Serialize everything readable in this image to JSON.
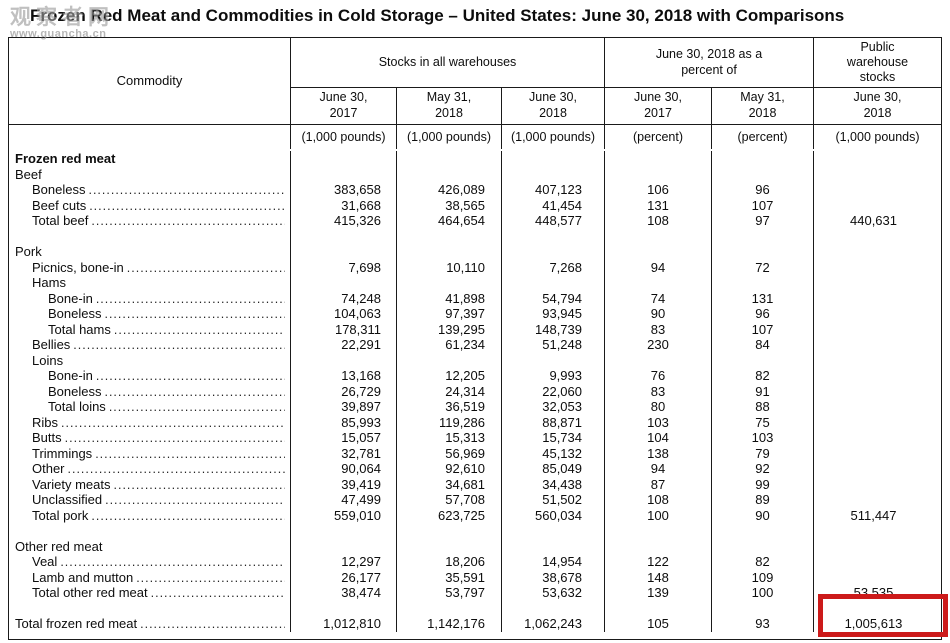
{
  "title": "Frozen Red Meat and Commodities in Cold Storage – United States: June 30, 2018 with Comparisons",
  "watermark": {
    "line1": "观察者网",
    "line2": "www.guancha.cn"
  },
  "colors": {
    "highlight_box": "#cc1a1a",
    "table_line": "#1a1a1a",
    "watermark": "#9b9b9b"
  },
  "header": {
    "commodity": "Commodity",
    "groups": {
      "stocks": "Stocks in all warehouses",
      "percent": "June 30, 2018 as a percent of",
      "public": "Public warehouse stocks"
    },
    "columns": [
      {
        "date": "June 30, 2017",
        "unit": "(1,000 pounds)"
      },
      {
        "date": "May 31, 2018",
        "unit": "(1,000 pounds)"
      },
      {
        "date": "June 30, 2018",
        "unit": "(1,000 pounds)"
      },
      {
        "date": "June 30, 2017",
        "unit": "(percent)"
      },
      {
        "date": "May 31, 2018",
        "unit": "(percent)"
      },
      {
        "date": "June 30, 2018",
        "unit": "(1,000 pounds)"
      }
    ]
  },
  "table": {
    "rows": [
      {
        "label": "Frozen red meat",
        "indent": 0,
        "bold": true,
        "dots": false,
        "values": [
          "",
          "",
          "",
          "",
          "",
          ""
        ]
      },
      {
        "label": "Beef",
        "indent": 0,
        "bold": false,
        "dots": false,
        "values": [
          "",
          "",
          "",
          "",
          "",
          ""
        ]
      },
      {
        "label": "Boneless",
        "indent": 1,
        "bold": false,
        "dots": true,
        "values": [
          "383,658",
          "426,089",
          "407,123",
          "106",
          "96",
          ""
        ]
      },
      {
        "label": "Beef cuts",
        "indent": 1,
        "bold": false,
        "dots": true,
        "values": [
          "31,668",
          "38,565",
          "41,454",
          "131",
          "107",
          ""
        ]
      },
      {
        "label": "Total beef",
        "indent": 1,
        "bold": false,
        "dots": true,
        "values": [
          "415,326",
          "464,654",
          "448,577",
          "108",
          "97",
          "440,631"
        ]
      },
      {
        "blank": true
      },
      {
        "label": "Pork",
        "indent": 0,
        "bold": false,
        "dots": false,
        "values": [
          "",
          "",
          "",
          "",
          "",
          ""
        ]
      },
      {
        "label": "Picnics, bone-in",
        "indent": 1,
        "bold": false,
        "dots": true,
        "values": [
          "7,698",
          "10,110",
          "7,268",
          "94",
          "72",
          ""
        ]
      },
      {
        "label": "Hams",
        "indent": 1,
        "bold": false,
        "dots": false,
        "values": [
          "",
          "",
          "",
          "",
          "",
          ""
        ]
      },
      {
        "label": "Bone-in",
        "indent": 2,
        "bold": false,
        "dots": true,
        "values": [
          "74,248",
          "41,898",
          "54,794",
          "74",
          "131",
          ""
        ]
      },
      {
        "label": "Boneless",
        "indent": 2,
        "bold": false,
        "dots": true,
        "values": [
          "104,063",
          "97,397",
          "93,945",
          "90",
          "96",
          ""
        ]
      },
      {
        "label": "Total hams",
        "indent": 2,
        "bold": false,
        "dots": true,
        "values": [
          "178,311",
          "139,295",
          "148,739",
          "83",
          "107",
          ""
        ]
      },
      {
        "label": "Bellies",
        "indent": 1,
        "bold": false,
        "dots": true,
        "values": [
          "22,291",
          "61,234",
          "51,248",
          "230",
          "84",
          ""
        ]
      },
      {
        "label": "Loins",
        "indent": 1,
        "bold": false,
        "dots": false,
        "values": [
          "",
          "",
          "",
          "",
          "",
          ""
        ]
      },
      {
        "label": "Bone-in",
        "indent": 2,
        "bold": false,
        "dots": true,
        "values": [
          "13,168",
          "12,205",
          "9,993",
          "76",
          "82",
          ""
        ]
      },
      {
        "label": "Boneless",
        "indent": 2,
        "bold": false,
        "dots": true,
        "values": [
          "26,729",
          "24,314",
          "22,060",
          "83",
          "91",
          ""
        ]
      },
      {
        "label": "Total loins",
        "indent": 2,
        "bold": false,
        "dots": true,
        "values": [
          "39,897",
          "36,519",
          "32,053",
          "80",
          "88",
          ""
        ]
      },
      {
        "label": "Ribs",
        "indent": 1,
        "bold": false,
        "dots": true,
        "values": [
          "85,993",
          "119,286",
          "88,871",
          "103",
          "75",
          ""
        ]
      },
      {
        "label": "Butts",
        "indent": 1,
        "bold": false,
        "dots": true,
        "values": [
          "15,057",
          "15,313",
          "15,734",
          "104",
          "103",
          ""
        ]
      },
      {
        "label": "Trimmings",
        "indent": 1,
        "bold": false,
        "dots": true,
        "values": [
          "32,781",
          "56,969",
          "45,132",
          "138",
          "79",
          ""
        ]
      },
      {
        "label": "Other",
        "indent": 1,
        "bold": false,
        "dots": true,
        "values": [
          "90,064",
          "92,610",
          "85,049",
          "94",
          "92",
          ""
        ]
      },
      {
        "label": "Variety meats",
        "indent": 1,
        "bold": false,
        "dots": true,
        "values": [
          "39,419",
          "34,681",
          "34,438",
          "87",
          "99",
          ""
        ]
      },
      {
        "label": "Unclassified",
        "indent": 1,
        "bold": false,
        "dots": true,
        "values": [
          "47,499",
          "57,708",
          "51,502",
          "108",
          "89",
          ""
        ]
      },
      {
        "label": "Total pork",
        "indent": 1,
        "bold": false,
        "dots": true,
        "values": [
          "559,010",
          "623,725",
          "560,034",
          "100",
          "90",
          "511,447"
        ]
      },
      {
        "blank": true
      },
      {
        "label": "Other red meat",
        "indent": 0,
        "bold": false,
        "dots": false,
        "values": [
          "",
          "",
          "",
          "",
          "",
          ""
        ]
      },
      {
        "label": "Veal",
        "indent": 1,
        "bold": false,
        "dots": true,
        "values": [
          "12,297",
          "18,206",
          "14,954",
          "122",
          "82",
          ""
        ]
      },
      {
        "label": "Lamb and mutton",
        "indent": 1,
        "bold": false,
        "dots": true,
        "values": [
          "26,177",
          "35,591",
          "38,678",
          "148",
          "109",
          ""
        ]
      },
      {
        "label": "Total other red meat",
        "indent": 1,
        "bold": false,
        "dots": true,
        "values": [
          "38,474",
          "53,797",
          "53,632",
          "139",
          "100",
          "53,535"
        ]
      },
      {
        "blank": true
      },
      {
        "label": "Total frozen red meat",
        "indent": 0,
        "bold": false,
        "dots": true,
        "values": [
          "1,012,810",
          "1,142,176",
          "1,062,243",
          "105",
          "93",
          "1,005,613"
        ]
      }
    ]
  }
}
